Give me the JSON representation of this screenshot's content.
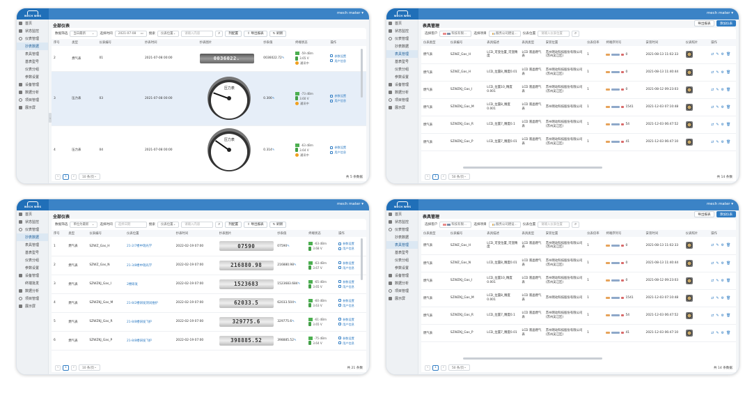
{
  "app": {
    "logo_text": "WECH WMS",
    "user": "mech mater ▾"
  },
  "panels": [
    {
      "nav": [
        {
          "label": "首页",
          "icon": "home-icon"
        },
        {
          "label": "状态监控",
          "icon": "monitor-icon"
        },
        {
          "label": "仪表管理",
          "icon": "gauge-icon"
        },
        {
          "label": "抄表数据",
          "sub": true,
          "active": true
        },
        {
          "label": "表具管理",
          "sub": true
        },
        {
          "label": "基表型号",
          "sub": true
        },
        {
          "label": "仪表分组",
          "sub": true
        },
        {
          "label": "参数设置",
          "sub": true
        },
        {
          "label": "设备管理",
          "icon": "device-icon"
        },
        {
          "label": "数据分析",
          "icon": "chart-icon"
        },
        {
          "label": "项目管理",
          "icon": "project-icon"
        },
        {
          "label": "展示屏",
          "icon": "screen-icon"
        }
      ],
      "title": "全部仪表",
      "filter": {
        "scope_label": "数据筛选",
        "scope_value": "当日最新",
        "time_label": "选择时间",
        "time_value": "2021-07-08",
        "search_label": "搜索",
        "search_field": "仪表位置",
        "search_placeholder": "请输入内容",
        "column_btn": "列配置",
        "export_btn": "导出报表",
        "refresh_btn": "刷新"
      },
      "columns": [
        "序号",
        "类型",
        "仪表编号",
        "抄表时间",
        "抄表图片",
        "抄表值",
        "终端状态",
        "操作"
      ],
      "rows": [
        {
          "no": "2",
          "type": "燃气表",
          "id": "01",
          "time": "2021-07-08 00:00",
          "image_text": "0036022.",
          "value": "0036022.72",
          "sig": "-59 dBm",
          "bat": "3.65 V",
          "state": "通讯中",
          "act1": "参数设置",
          "act2": "用户信息"
        },
        {
          "no": "3",
          "type": "压力表",
          "id": "03",
          "time": "2021-07-08 00:00",
          "gauge_label": "压力表",
          "value": "0.306",
          "sig": "-73 dBm",
          "bat": "3.60 V",
          "state": "通讯中",
          "act1": "参数设置",
          "act2": "用户信息"
        },
        {
          "no": "4",
          "type": "压力表",
          "id": "04",
          "time": "2021-07-08 00:00",
          "gauge_label": "压力表",
          "value": "0.314",
          "sig": "-63 dBm",
          "bat": "3.64 V",
          "state": "通讯中",
          "act1": "参数设置",
          "act2": "用户信息"
        }
      ],
      "pager": {
        "page": "1",
        "size": "10 条/页",
        "total": "共 5 条数据"
      }
    },
    {
      "nav": [
        {
          "label": "首页",
          "icon": "home-icon"
        },
        {
          "label": "状态监控",
          "icon": "monitor-icon"
        },
        {
          "label": "仪表管理",
          "icon": "gauge-icon"
        },
        {
          "label": "抄表数据",
          "sub": true
        },
        {
          "label": "表具管理",
          "sub": true,
          "active": true
        },
        {
          "label": "基表型号",
          "sub": true
        },
        {
          "label": "仪表分组",
          "sub": true
        },
        {
          "label": "参数设置",
          "sub": true
        },
        {
          "label": "设备管理",
          "icon": "device-icon"
        },
        {
          "label": "数据分析",
          "icon": "chart-icon"
        },
        {
          "label": "项目管理",
          "icon": "project-icon"
        },
        {
          "label": "展示屏",
          "icon": "screen-icon"
        }
      ],
      "title": "表具管理",
      "buttons": {
        "export": "导出报表",
        "add": "添加仪表"
      },
      "filter": {
        "customer_label": "选择客户",
        "customer_value": "科技有限...",
        "project_label": "选择项目",
        "project_value": "服务公司建设...",
        "location_label": "仪表位置",
        "location_placeholder": "请输入仪表位置"
      },
      "columns": [
        "仪表类型",
        "仪表编号",
        "表具描述",
        "表具类型",
        "安装位置",
        "仪表倍率",
        "终端序列号",
        "安装时间",
        "仪表照片",
        "操作"
      ],
      "rows": [
        {
          "type": "燃气表",
          "id": "SZWZ_Gas_H",
          "desc": "LCD_可变位置_可变精度",
          "kind": "LCD 液晶燃气表",
          "loc": "苏州明动科技股份有限公司(苏州吴江区)",
          "ratio": "1",
          "dots": "0",
          "date": "2021-08-13 11:02:33"
        },
        {
          "type": "燃气表",
          "id": "SZWZ_Gas_H",
          "desc": "LCD_位置8_精度0.01",
          "kind": "LCD 液晶燃气表",
          "loc": "苏州明动科技股份有限公司(苏州吴江区)",
          "ratio": "1",
          "dots": "0",
          "date": "2021-08-13 11:40:44"
        },
        {
          "type": "燃气表",
          "id": "SZWZKJ_Gas_I",
          "desc": "LCD_位置10_精度0.001",
          "kind": "LCD 液晶燃气表",
          "loc": "苏州明动科技股份有限公司(苏州吴江区)",
          "ratio": "1",
          "dots": "0",
          "date": "2021-08-12 09:23:03"
        },
        {
          "type": "燃气表",
          "id": "SZWZKJ_Gas_M",
          "desc": "LCD_位置8_精度0.001",
          "kind": "LCD 液晶燃气表",
          "loc": "苏州明动科技股份有限公司",
          "ratio": "1",
          "dots": "1541",
          "date": "2021-12-03 07:10:48"
        },
        {
          "type": "燃气表",
          "id": "SZWZKJ_Gas_R",
          "desc": "LCD_位置7_精度0.1",
          "kind": "LCD 液晶燃气表",
          "loc": "苏州明动科技股份有限公司(苏州吴江区)",
          "ratio": "1",
          "dots": "54",
          "date": "2021-12-03 06:47:52"
        },
        {
          "type": "燃气表",
          "id": "SZWZKJ_Gas_P",
          "desc": "LCD_位置7_精度0.01",
          "kind": "LCD 液晶燃气表",
          "loc": "苏州明动科技股份有限公司(苏州吴江区)",
          "ratio": "1",
          "dots": "41",
          "date": "2021-12-03 06:47:10"
        }
      ],
      "pager": {
        "page": "1",
        "size": "50 条/页",
        "total": "共 14 条数"
      }
    },
    {
      "nav": [
        {
          "label": "首页",
          "icon": "home-icon"
        },
        {
          "label": "状态监控",
          "icon": "monitor-icon"
        },
        {
          "label": "仪表管理",
          "icon": "gauge-icon"
        },
        {
          "label": "抄表数据",
          "sub": true,
          "active": true
        },
        {
          "label": "表具管理",
          "sub": true
        },
        {
          "label": "基表型号",
          "sub": true
        },
        {
          "label": "仪表分组",
          "sub": true
        },
        {
          "label": "参数设置",
          "sub": true
        },
        {
          "label": "设备管理",
          "icon": "device-icon"
        },
        {
          "label": "终端批发",
          "sub": true
        },
        {
          "label": "数据分析",
          "icon": "chart-icon"
        },
        {
          "label": "项目管理",
          "icon": "project-icon"
        },
        {
          "label": "展示屏",
          "icon": "screen-icon"
        }
      ],
      "title": "全部仪表",
      "filter": {
        "scope_label": "数据筛选",
        "scope_value": "单位为最新",
        "time_label": "选择时间",
        "time_value": "选择日期",
        "search_label": "搜索",
        "search_field": "仪表位置",
        "search_placeholder": "请输入内容",
        "column_btn": "列配置",
        "export_btn": "导出报表",
        "refresh_btn": "刷新"
      },
      "columns": [
        "序号",
        "类型",
        "仪表编号",
        "仪表位置",
        "抄表时间",
        "抄表图片",
        "抄表值",
        "终端状态",
        "操作"
      ],
      "rows": [
        {
          "no": "1",
          "type": "燃气表",
          "id": "SZWZ_Gas_H",
          "loc": "21-2/7楼中瑞光学",
          "time": "2022-02-19 07:00",
          "image_text": "07590",
          "value": "07590",
          "sig": "-63 dBm",
          "bat": "3.68 V",
          "act1": "参数设置",
          "act2": "用户信息"
        },
        {
          "no": "2",
          "type": "燃气表",
          "id": "SZWZ_Gas_N",
          "loc": "21-3/8楼中瑞光学",
          "time": "2022-02-19 07:00",
          "image_text": "216880.98",
          "value": "216880.98",
          "sig": "-63 dBm",
          "bat": "3.67 V",
          "act1": "参数设置",
          "act2": "用户信息"
        },
        {
          "no": "3",
          "type": "燃气表",
          "id": "SZWZKJ_Gas_I",
          "loc": "2楼研发",
          "time": "2022-02-19 07:00",
          "image_text": "1523683",
          "value": "1523683.684",
          "sig": "-65 dBm",
          "bat": "3.65 V",
          "act1": "参数设置",
          "act2": "用户信息"
        },
        {
          "no": "4",
          "type": "燃气表",
          "id": "SZWZKJ_Gas_M",
          "loc": "21-8/2楼研发测试维护",
          "time": "2022-02-19 07:00",
          "image_text": "62033.5",
          "value": "62033.504",
          "sig": "-60 dBm",
          "bat": "3.63 V",
          "act1": "参数设置",
          "act2": "用户信息"
        },
        {
          "no": "5",
          "type": "燃气表",
          "id": "SZWZKJ_Gas_R",
          "loc": "21-8/8楼研发飞护",
          "time": "2022-02-19 07:00",
          "image_text": "329775.6",
          "value": "329775.6",
          "sig": "-61 dBm",
          "bat": "3.65 V",
          "act1": "参数设置",
          "act2": "用户信息"
        },
        {
          "no": "6",
          "type": "燃气表",
          "id": "SZWZKJ_Gas_P",
          "loc": "21-8/8楼研发飞护",
          "time": "2022-02-19 07:00",
          "image_text": "398885.52",
          "value": "398885.52",
          "sig": "-75 dBm",
          "bat": "3.64 V",
          "act1": "参数设置",
          "act2": "用户信息"
        }
      ],
      "pager": {
        "page": "1",
        "size": "10 条/页",
        "total": "共 21 条数"
      }
    },
    {
      "nav": [
        {
          "label": "首页",
          "icon": "home-icon"
        },
        {
          "label": "状态监控",
          "icon": "monitor-icon"
        },
        {
          "label": "仪表管理",
          "icon": "gauge-icon"
        },
        {
          "label": "抄表数据",
          "sub": true
        },
        {
          "label": "表具管理",
          "sub": true,
          "active": true
        },
        {
          "label": "基表型号",
          "sub": true
        },
        {
          "label": "仪表分组",
          "sub": true
        },
        {
          "label": "参数设置",
          "sub": true
        },
        {
          "label": "设备管理",
          "icon": "device-icon"
        },
        {
          "label": "数据分析",
          "icon": "chart-icon"
        },
        {
          "label": "项目管理",
          "icon": "project-icon"
        },
        {
          "label": "展示屏",
          "icon": "screen-icon"
        }
      ],
      "title": "表具管理",
      "buttons": {
        "export": "导出报表",
        "add": "添加仪表"
      },
      "filter": {
        "customer_label": "选择客户",
        "customer_value": "科技有限...",
        "project_label": "选择项目",
        "project_value": "服务公司建设...",
        "location_label": "仪表位置",
        "location_placeholder": "请输入仪表位置"
      },
      "columns": [
        "仪表类型",
        "仪表编号",
        "表具描述",
        "表具类型",
        "安装位置",
        "仪表倍率",
        "终端序列号",
        "安装时间",
        "仪表照片",
        "操作"
      ],
      "rows": [
        {
          "type": "燃气表",
          "id": "SZWZ_Gas_H",
          "desc": "LCD_可变位置_可变精度",
          "kind": "LCD 液晶燃气表",
          "loc": "苏州明动科技股份有限公司(苏州吴江区)",
          "ratio": "1",
          "dots": "0",
          "date": "2021-08-13 11:02:33"
        },
        {
          "type": "燃气表",
          "id": "SZWZ_Gas_N",
          "desc": "LCD_位置8_精度0.01",
          "kind": "LCD 液晶燃气表",
          "loc": "苏州明动科技股份有限公司(苏州吴江区)",
          "ratio": "1",
          "dots": "0",
          "date": "2021-08-13 11:40:44"
        },
        {
          "type": "燃气表",
          "id": "SZWZKJ_Gas_I",
          "desc": "LCD_位置10_精度0.001",
          "kind": "LCD 液晶燃气表",
          "loc": "苏州明动科技股份有限公司(苏州吴江区)",
          "ratio": "1",
          "dots": "0",
          "date": "2021-08-12 09:23:03"
        },
        {
          "type": "燃气表",
          "id": "SZWZKJ_Gas_M",
          "desc": "LCD_位置8_精度0.001",
          "kind": "LCD 液晶燃气表",
          "loc": "苏州明动科技股份有限公司",
          "ratio": "1",
          "dots": "1541",
          "date": "2021-12-03 07:10:48"
        },
        {
          "type": "燃气表",
          "id": "SZWZKJ_Gas_R",
          "desc": "LCD_位置7_精度0.1",
          "kind": "LCD 液晶燃气表",
          "loc": "苏州明动科技股份有限公司(苏州吴江区)",
          "ratio": "1",
          "dots": "54",
          "date": "2021-12-03 06:47:52"
        },
        {
          "type": "燃气表",
          "id": "SZWZKJ_Gas_P",
          "desc": "LCD_位置7_精度0.01",
          "kind": "LCD 液晶燃气表",
          "loc": "苏州明动科技股份有限公司(苏州吴江区)",
          "ratio": "1",
          "dots": "41",
          "date": "2021-12-03 06:47:10"
        }
      ],
      "pager": {
        "page": "1",
        "size": "50 条/页",
        "total": "共 14 条数据"
      }
    }
  ]
}
